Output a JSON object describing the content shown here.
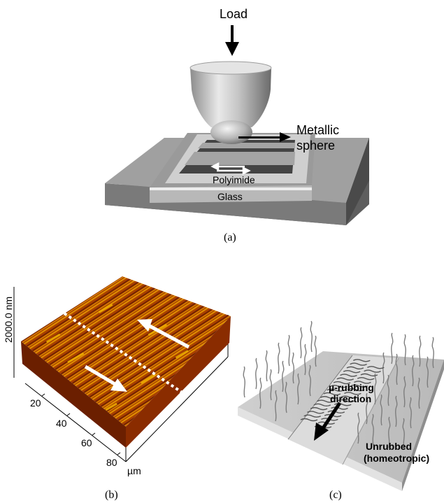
{
  "panel_a": {
    "load_label": "Load",
    "sphere_label_line1": "Metallic",
    "sphere_label_line2": "sphere",
    "polyimide_label": "Polyimide",
    "glass_label": "Glass",
    "caption": "(a)"
  },
  "panel_b": {
    "z_scale_label": "2000.0 nm",
    "x_ticks": [
      "20",
      "40",
      "60",
      "80"
    ],
    "x_unit": "µm",
    "caption": "(b)"
  },
  "panel_c": {
    "rubbing_label_line1": "µ-rubbing",
    "rubbing_label_line2": "direction",
    "unrubbed_label_line1": "Unrubbed",
    "unrubbed_label_line2": "(homeotropic)",
    "caption": "(c)"
  },
  "colors": {
    "afm_dark": "#6b1f00",
    "afm_mid": "#b84a00",
    "afm_light": "#f0b000",
    "base_gray": "#6e6e6e",
    "glass_gray": "#b8b8b8"
  }
}
